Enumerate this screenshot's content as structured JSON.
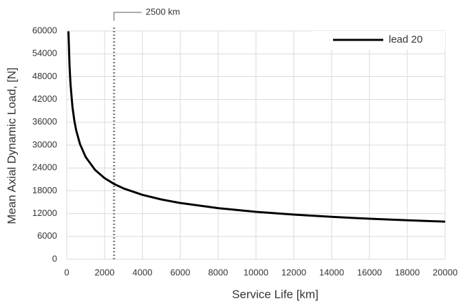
{
  "chart_data": {
    "type": "line",
    "x_label": "Service Life  [km]",
    "y_label": "Mean Axial Dynamic Load, [N]",
    "x": [
      90,
      150,
      200,
      300,
      400,
      500,
      700,
      1000,
      1500,
      2000,
      2500,
      3000,
      4000,
      5000,
      6000,
      8000,
      10000,
      12000,
      14000,
      16000,
      18000,
      20000
    ],
    "series": [
      {
        "name": "lead 20",
        "color": "#000000",
        "values": [
          59900,
          50570,
          45960,
          40140,
          36470,
          33860,
          30280,
          26870,
          23480,
          21330,
          19800,
          18630,
          16930,
          15720,
          14790,
          13440,
          12470,
          11740,
          11150,
          10660,
          10260,
          9900
        ]
      }
    ],
    "xlim": [
      0,
      20000
    ],
    "xticks": [
      0,
      2000,
      4000,
      6000,
      8000,
      10000,
      12000,
      14000,
      16000,
      18000,
      20000
    ],
    "ylim": [
      0,
      60000
    ],
    "yticks": [
      0,
      6000,
      12000,
      18000,
      24000,
      30000,
      36000,
      42000,
      48000,
      54000,
      60000
    ],
    "grid": true,
    "legend": "upper right",
    "annotations": [
      {
        "x": 2500,
        "label": "2500 km",
        "color": "#808080"
      }
    ]
  }
}
